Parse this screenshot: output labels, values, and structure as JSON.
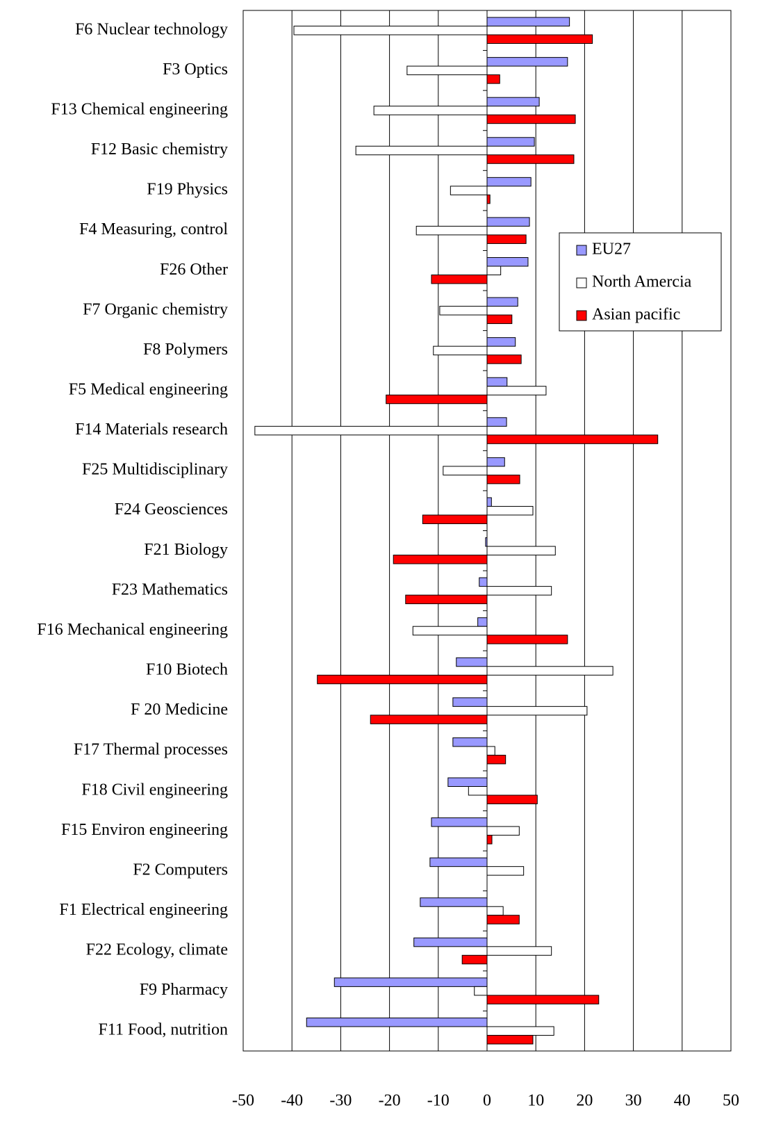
{
  "chart_data": {
    "type": "hbar",
    "categories": [
      "F6 Nuclear technology",
      "F3 Optics",
      "F13 Chemical engineering",
      "F12 Basic chemistry",
      "F19 Physics",
      "F4 Measuring, control",
      "F26 Other",
      "F7 Organic chemistry",
      "F8 Polymers",
      "F5 Medical engineering",
      "F14 Materials research",
      "F25 Multidisciplinary",
      "F24 Geosciences",
      "F21 Biology",
      "F23 Mathematics",
      "F16 Mechanical engineering",
      "F10 Biotech",
      "F 20 Medicine",
      "F17 Thermal processes",
      "F18 Civil engineering",
      "F15 Environ engineering",
      "F2 Computers",
      "F1 Electrical engineering",
      "F22 Ecology, climate",
      "F9 Pharmacy",
      "F11 Food, nutrition"
    ],
    "series": [
      {
        "name": "EU27",
        "color": "#9999ff",
        "values": [
          16.9,
          16.5,
          10.7,
          9.7,
          9.0,
          8.7,
          8.4,
          6.3,
          5.8,
          4.1,
          4.0,
          3.6,
          0.9,
          -0.3,
          -1.6,
          -1.9,
          -6.3,
          -7.0,
          -7.0,
          -8.0,
          -11.4,
          -11.7,
          -13.7,
          -15.0,
          -31.3,
          -37.0
        ]
      },
      {
        "name": "North Amercia",
        "color": "#ffffff",
        "values": [
          -39.6,
          -16.4,
          -23.2,
          -26.9,
          -7.5,
          -14.5,
          2.8,
          -9.7,
          -11.0,
          12.1,
          -47.6,
          -9.0,
          9.4,
          14.0,
          13.2,
          -15.2,
          25.8,
          20.5,
          1.6,
          -3.8,
          6.6,
          7.5,
          3.3,
          13.2,
          -2.6,
          13.7
        ]
      },
      {
        "name": "Asian pacific",
        "color": "#ff0000",
        "values": [
          21.6,
          2.6,
          18.1,
          17.8,
          0.6,
          8.0,
          -11.4,
          5.1,
          7.0,
          -20.7,
          35.0,
          6.7,
          -13.2,
          -19.2,
          -16.7,
          16.5,
          -34.8,
          -23.9,
          3.8,
          10.3,
          1.0,
          0,
          6.6,
          -5.1,
          22.9,
          9.4
        ]
      }
    ],
    "xlim": [
      -50,
      50
    ],
    "xticks": [
      -50,
      -40,
      -30,
      -20,
      -10,
      0,
      10,
      20,
      30,
      40,
      50
    ],
    "grid": true,
    "legend_position": "upper-right"
  }
}
